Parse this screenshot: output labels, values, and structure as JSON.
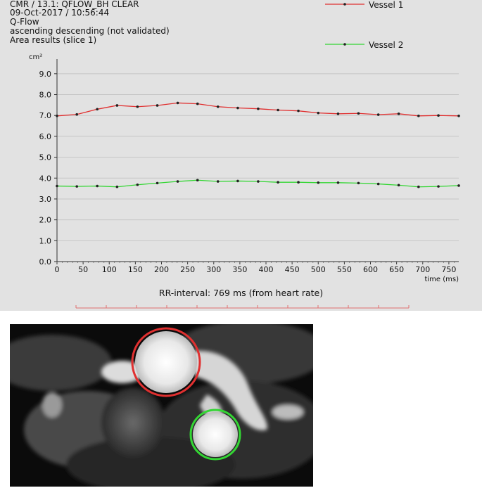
{
  "header": {
    "line1": "CMR / 13.1: QFLOW_BH CLEAR",
    "line2": "09-Oct-2017 / 10:56:44",
    "line3": "Q-Flow",
    "line4": "ascending descending (not validated)",
    "line5": "Area results (slice  1)"
  },
  "rr_interval": "RR-interval: 769 ms (from heart rate)",
  "colors": {
    "vessel1": "#e03030",
    "vessel2": "#33d633",
    "panel": "#e2e2e2",
    "grid": "#c6c6c6"
  },
  "chart_data": {
    "type": "line",
    "ylabel": "cm²",
    "xlabel": "time (ms)",
    "ylim": [
      0,
      9.5
    ],
    "xlim": [
      0,
      769
    ],
    "y_ticks": [
      "0.0",
      "1.0",
      "2.0",
      "3.0",
      "4.0",
      "5.0",
      "6.0",
      "7.0",
      "8.0",
      "9.0"
    ],
    "x_ticks": [
      "0",
      "50",
      "100",
      "150",
      "200",
      "250",
      "300",
      "350",
      "400",
      "450",
      "500",
      "550",
      "600",
      "650",
      "700",
      "750"
    ],
    "grid": true,
    "legend_position": "top-right",
    "x": [
      0,
      38,
      77,
      115,
      154,
      192,
      231,
      269,
      308,
      346,
      385,
      423,
      462,
      500,
      538,
      577,
      615,
      654,
      692,
      730,
      769
    ],
    "series": [
      {
        "name": "Vessel 1",
        "values": [
          6.98,
          7.05,
          7.3,
          7.48,
          7.42,
          7.48,
          7.6,
          7.56,
          7.42,
          7.36,
          7.32,
          7.26,
          7.22,
          7.12,
          7.08,
          7.1,
          7.04,
          7.08,
          6.98,
          7.0,
          6.98
        ]
      },
      {
        "name": "Vessel 2",
        "values": [
          3.62,
          3.6,
          3.62,
          3.58,
          3.68,
          3.76,
          3.84,
          3.9,
          3.84,
          3.86,
          3.84,
          3.8,
          3.8,
          3.78,
          3.78,
          3.76,
          3.72,
          3.66,
          3.58,
          3.6,
          3.64
        ]
      }
    ]
  }
}
